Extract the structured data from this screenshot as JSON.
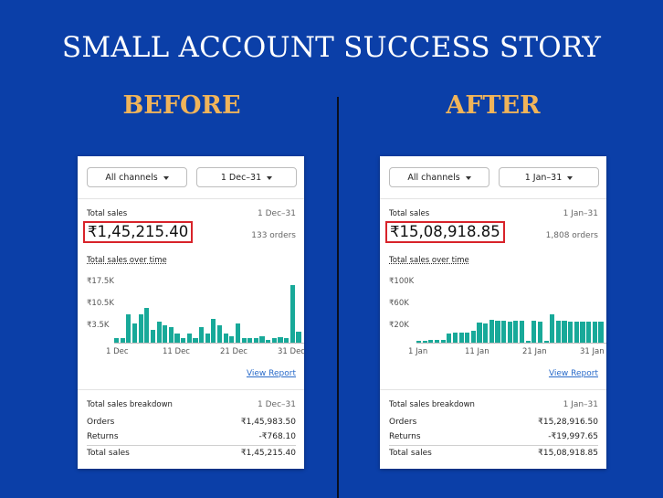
{
  "title": "SMALL ACCOUNT SUCCESS STORY",
  "before_label": "BEFORE",
  "after_label": "AFTER",
  "colors": {
    "background": "#0b3fa8",
    "label": "#f0b45a",
    "bar": "#18a999",
    "highlight": "#d8232a",
    "link": "#2a6bc9"
  },
  "before": {
    "channel_select": "All channels",
    "date_select": "1 Dec–31",
    "total_sales_label": "Total sales",
    "date_range": "1 Dec–31",
    "total_sales_value": "₹1,45,215.40",
    "orders_count": "133 orders",
    "chart_title": "Total sales over time",
    "y_ticks": [
      "₹17.5K",
      "₹10.5K",
      "₹3.5K"
    ],
    "x_ticks": [
      "1 Dec",
      "11 Dec",
      "21 Dec",
      "31 Dec"
    ],
    "view_report": "View Report",
    "breakdown_title": "Total sales breakdown",
    "breakdown_date": "1 Dec–31",
    "orders_label": "Orders",
    "orders_value": "₹1,45,983.50",
    "returns_label": "Returns",
    "returns_value": "-₹768.10",
    "total_label": "Total sales",
    "total_value": "₹1,45,215.40"
  },
  "after": {
    "channel_select": "All channels",
    "date_select": "1 Jan–31",
    "total_sales_label": "Total sales",
    "date_range": "1 Jan–31",
    "total_sales_value": "₹15,08,918.85",
    "orders_count": "1,808 orders",
    "chart_title": "Total sales over time",
    "y_ticks": [
      "₹100K",
      "₹60K",
      "₹20K"
    ],
    "x_ticks": [
      "1 Jan",
      "11 Jan",
      "21 Jan",
      "31 Jan"
    ],
    "view_report": "View Report",
    "breakdown_title": "Total sales breakdown",
    "breakdown_date": "1 Jan–31",
    "orders_label": "Orders",
    "orders_value": "₹15,28,916.50",
    "returns_label": "Returns",
    "returns_value": "-₹19,997.65",
    "total_label": "Total sales",
    "total_value": "₹15,08,918.85"
  },
  "chart_data": [
    {
      "type": "bar",
      "x": [
        "1 Dec",
        "2 Dec",
        "3 Dec",
        "4 Dec",
        "5 Dec",
        "6 Dec",
        "7 Dec",
        "8 Dec",
        "9 Dec",
        "10 Dec",
        "11 Dec",
        "12 Dec",
        "13 Dec",
        "14 Dec",
        "15 Dec",
        "16 Dec",
        "17 Dec",
        "18 Dec",
        "19 Dec",
        "20 Dec",
        "21 Dec",
        "22 Dec",
        "23 Dec",
        "24 Dec",
        "25 Dec",
        "26 Dec",
        "27 Dec",
        "28 Dec",
        "29 Dec",
        "30 Dec",
        "31 Dec"
      ],
      "values": [
        1.5,
        1.3,
        9,
        6,
        9,
        11,
        4,
        6.5,
        5.5,
        5,
        3,
        1.5,
        3,
        1.5,
        5,
        3,
        7.5,
        5.5,
        3,
        2,
        6,
        1.5,
        1.5,
        1.5,
        2,
        1,
        1.5,
        1.8,
        1.5,
        18,
        3.5
      ],
      "ylim": [
        0,
        20
      ],
      "y_ticks_k": [
        17.5,
        10.5,
        3.5
      ]
    },
    {
      "type": "bar",
      "x": [
        "1 Jan",
        "2 Jan",
        "3 Jan",
        "4 Jan",
        "5 Jan",
        "6 Jan",
        "7 Jan",
        "8 Jan",
        "9 Jan",
        "10 Jan",
        "11 Jan",
        "12 Jan",
        "13 Jan",
        "14 Jan",
        "15 Jan",
        "16 Jan",
        "17 Jan",
        "18 Jan",
        "19 Jan",
        "20 Jan",
        "21 Jan",
        "22 Jan",
        "23 Jan",
        "24 Jan",
        "25 Jan",
        "26 Jan",
        "27 Jan",
        "28 Jan",
        "29 Jan",
        "30 Jan",
        "31 Jan"
      ],
      "values": [
        3,
        3,
        5,
        5,
        5,
        16,
        17,
        17,
        17,
        20,
        34,
        33,
        40,
        38,
        38,
        36,
        38,
        38,
        3,
        38,
        36,
        3,
        48,
        38,
        38,
        36,
        36,
        36,
        36,
        36,
        36
      ],
      "ylim": [
        0,
        110
      ],
      "y_ticks_k": [
        100,
        60,
        20
      ]
    }
  ]
}
